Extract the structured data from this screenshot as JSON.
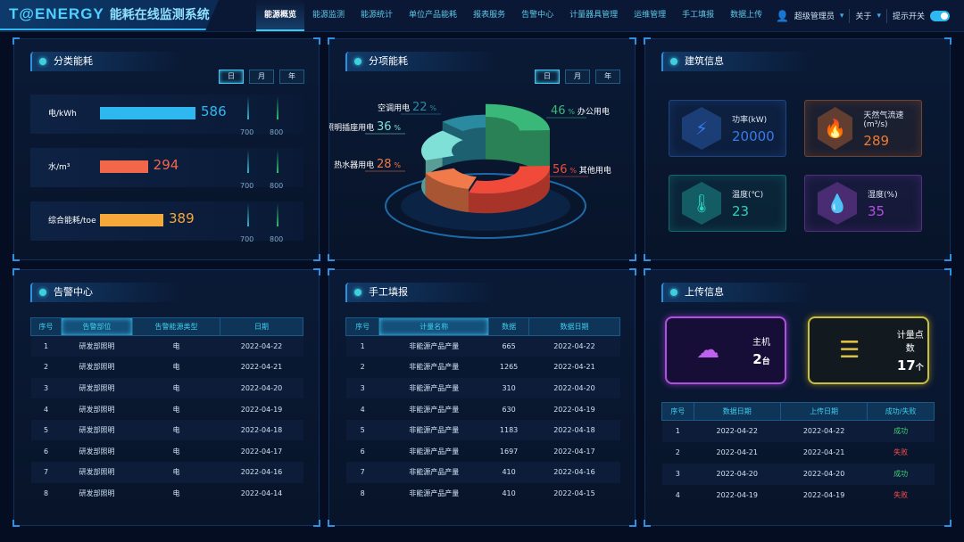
{
  "header": {
    "brand": "T@ENERGY",
    "system_name": "能耗在线监测系统",
    "nav": [
      "能源概览",
      "能源监测",
      "能源统计",
      "单位产品能耗",
      "报表服务",
      "告警中心",
      "计量器具管理",
      "运维管理",
      "手工填报",
      "数据上传"
    ],
    "active_nav": 0,
    "user": "超级管理员",
    "about": "关于",
    "tip_switch": "提示开关",
    "tip_switch_on": true
  },
  "period_tabs": [
    "日",
    "月",
    "年"
  ],
  "category": {
    "title": "分类能耗",
    "rows": [
      {
        "label": "电/kWh",
        "value": 586,
        "color": "#2fb8f0",
        "ticks": [
          "700",
          "800"
        ]
      },
      {
        "label": "水/m³",
        "value": 294,
        "color": "#f2664a",
        "ticks": [
          "700",
          "800"
        ]
      },
      {
        "label": "综合能耗/toe",
        "value": 389,
        "color": "#f5a93a",
        "ticks": [
          "700",
          "800"
        ]
      }
    ]
  },
  "subitem": {
    "title": "分项能耗",
    "items": [
      {
        "name": "办公用电",
        "pct": 46,
        "unit": "%",
        "color": "#3ab87a"
      },
      {
        "name": "其他用电",
        "pct": 56,
        "unit": "%",
        "color": "#f04a3a"
      },
      {
        "name": "热水器用电",
        "pct": 28,
        "unit": "%",
        "color": "#f07a4a"
      },
      {
        "name": "照明插座用电",
        "pct": 36,
        "unit": "%",
        "color": "#7fe0d8"
      },
      {
        "name": "空调用电",
        "pct": 22,
        "unit": "%",
        "color": "#2a8aa0"
      }
    ]
  },
  "building": {
    "title": "建筑信息",
    "cards": [
      {
        "label": "功率(kW)",
        "value": "20000",
        "icon": "power-meter-icon",
        "color": "#3a7ae8"
      },
      {
        "label": "天然气流速(m³/s)",
        "value": "289",
        "icon": "flame-icon",
        "color": "#f07a30"
      },
      {
        "label": "温度(℃)",
        "value": "23",
        "icon": "thermometer-icon",
        "color": "#2ad0c0"
      },
      {
        "label": "湿度(%)",
        "value": "35",
        "icon": "droplet-icon",
        "color": "#b050e0"
      }
    ]
  },
  "alarm": {
    "title": "告警中心",
    "columns": [
      "序号",
      "告警部位",
      "告警能源类型",
      "日期"
    ],
    "rows": [
      [
        "1",
        "研发部照明",
        "电",
        "2022-04-22"
      ],
      [
        "2",
        "研发部照明",
        "电",
        "2022-04-21"
      ],
      [
        "3",
        "研发部照明",
        "电",
        "2022-04-20"
      ],
      [
        "4",
        "研发部照明",
        "电",
        "2022-04-19"
      ],
      [
        "5",
        "研发部照明",
        "电",
        "2022-04-18"
      ],
      [
        "6",
        "研发部照明",
        "电",
        "2022-04-17"
      ],
      [
        "7",
        "研发部照明",
        "电",
        "2022-04-16"
      ],
      [
        "8",
        "研发部照明",
        "电",
        "2022-04-14"
      ]
    ]
  },
  "manual": {
    "title": "手工填报",
    "columns": [
      "序号",
      "计量名称",
      "数据",
      "数据日期"
    ],
    "rows": [
      [
        "1",
        "非能源产品产量",
        "665",
        "2022-04-22"
      ],
      [
        "2",
        "非能源产品产量",
        "1265",
        "2022-04-21"
      ],
      [
        "3",
        "非能源产品产量",
        "310",
        "2022-04-20"
      ],
      [
        "4",
        "非能源产品产量",
        "630",
        "2022-04-19"
      ],
      [
        "5",
        "非能源产品产量",
        "1183",
        "2022-04-18"
      ],
      [
        "6",
        "非能源产品产量",
        "1697",
        "2022-04-17"
      ],
      [
        "7",
        "非能源产品产量",
        "410",
        "2022-04-16"
      ],
      [
        "8",
        "非能源产品产量",
        "410",
        "2022-04-15"
      ]
    ]
  },
  "upload": {
    "title": "上传信息",
    "host_label": "主机",
    "host_value": "2",
    "host_unit": "台",
    "points_label": "计量点数",
    "points_value": "17",
    "points_unit": "个",
    "columns": [
      "序号",
      "数据日期",
      "上传日期",
      "成功/失败"
    ],
    "rows": [
      [
        "1",
        "2022-04-22",
        "2022-04-22",
        "成功"
      ],
      [
        "2",
        "2022-04-21",
        "2022-04-21",
        "失败"
      ],
      [
        "3",
        "2022-04-20",
        "2022-04-20",
        "成功"
      ],
      [
        "4",
        "2022-04-19",
        "2022-04-19",
        "失败"
      ]
    ]
  }
}
